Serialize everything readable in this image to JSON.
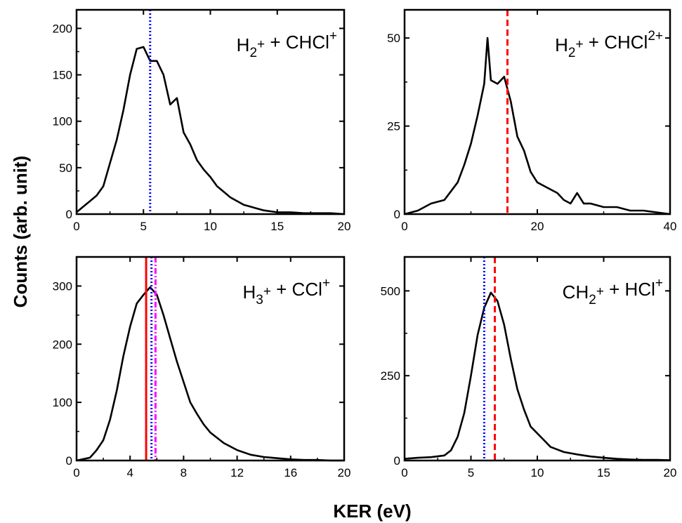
{
  "ylabel": "Counts (arb. unit)",
  "xlabel": "KER (eV)",
  "chart_data": [
    {
      "type": "line",
      "panel": "top-left",
      "title": {
        "parts": [
          {
            "t": "H"
          },
          {
            "t": "2",
            "sub": true
          },
          {
            "t": "+",
            "sup": true
          },
          {
            "t": " + CHCl"
          },
          {
            "t": "+",
            "sup": true
          }
        ]
      },
      "xlim": [
        0,
        20
      ],
      "ylim": [
        0,
        220
      ],
      "xticks": [
        0,
        5,
        10,
        15,
        20
      ],
      "yticks": [
        0,
        50,
        100,
        150,
        200
      ],
      "series": [
        {
          "color": "#000000",
          "x": [
            0,
            0.5,
            1,
            1.5,
            2,
            2.5,
            3,
            3.5,
            4,
            4.5,
            5,
            5.5,
            6,
            6.5,
            7,
            7.5,
            8,
            8.5,
            9,
            9.5,
            10,
            10.5,
            11,
            11.5,
            12,
            12.5,
            13,
            13.5,
            14,
            14.5,
            15,
            16,
            17,
            18,
            19,
            20
          ],
          "y": [
            2,
            8,
            14,
            20,
            30,
            55,
            80,
            112,
            150,
            178,
            180,
            165,
            165,
            150,
            118,
            125,
            88,
            75,
            58,
            48,
            40,
            30,
            24,
            18,
            14,
            10,
            8,
            6,
            4,
            3,
            2,
            2,
            1,
            1,
            1,
            0
          ]
        }
      ],
      "vlines": [
        {
          "x": 5.5,
          "style": "dotted",
          "color": "#0000ff"
        }
      ]
    },
    {
      "type": "line",
      "panel": "top-right",
      "title": {
        "parts": [
          {
            "t": "H"
          },
          {
            "t": "2",
            "sub": true
          },
          {
            "t": "+",
            "sup": true
          },
          {
            "t": " + CHCl"
          },
          {
            "t": "2+",
            "sup": true
          }
        ]
      },
      "xlim": [
        0,
        40
      ],
      "ylim": [
        0,
        58
      ],
      "xticks": [
        0,
        20,
        40
      ],
      "yticks": [
        0,
        25,
        50
      ],
      "series": [
        {
          "color": "#000000",
          "x": [
            0,
            2,
            4,
            6,
            8,
            9,
            10,
            11,
            12,
            12.5,
            13,
            14,
            15,
            16,
            17,
            18,
            19,
            20,
            21,
            22,
            23,
            24,
            25,
            26,
            27,
            28,
            30,
            32,
            34,
            36,
            38,
            40
          ],
          "y": [
            0,
            1,
            3,
            4,
            9,
            14,
            20,
            28,
            37,
            50,
            38,
            37,
            39,
            32,
            22,
            18,
            12,
            9,
            8,
            7,
            6,
            4,
            3,
            6,
            3,
            3,
            2,
            2,
            1,
            1,
            0.5,
            0
          ]
        }
      ],
      "vlines": [
        {
          "x": 15.5,
          "style": "dashed",
          "color": "#ff0000"
        }
      ]
    },
    {
      "type": "line",
      "panel": "bottom-left",
      "title": {
        "parts": [
          {
            "t": "H"
          },
          {
            "t": "3",
            "sub": true
          },
          {
            "t": "+",
            "sup": true
          },
          {
            "t": " + CCl"
          },
          {
            "t": "+",
            "sup": true
          }
        ]
      },
      "xlim": [
        0,
        20
      ],
      "ylim": [
        0,
        350
      ],
      "xticks": [
        0,
        4,
        8,
        12,
        16,
        20
      ],
      "yticks": [
        0,
        100,
        200,
        300
      ],
      "series": [
        {
          "color": "#000000",
          "x": [
            0,
            1,
            1.5,
            2,
            2.5,
            3,
            3.5,
            4,
            4.5,
            5,
            5.5,
            6,
            6.5,
            7,
            7.5,
            8,
            8.5,
            9,
            9.5,
            10,
            11,
            12,
            13,
            14,
            15,
            16,
            17,
            18,
            19,
            20
          ],
          "y": [
            0,
            5,
            18,
            35,
            70,
            120,
            180,
            230,
            270,
            285,
            298,
            285,
            250,
            210,
            170,
            135,
            100,
            80,
            62,
            48,
            30,
            18,
            10,
            6,
            4,
            2,
            1,
            1,
            0,
            0
          ]
        }
      ],
      "vlines": [
        {
          "x": 5.2,
          "style": "solid",
          "color": "#ff0000"
        },
        {
          "x": 5.6,
          "style": "dotted",
          "color": "#0000ff"
        },
        {
          "x": 5.9,
          "style": "dashdot",
          "color": "#ff00ff"
        }
      ]
    },
    {
      "type": "line",
      "panel": "bottom-right",
      "title": {
        "parts": [
          {
            "t": "CH"
          },
          {
            "t": "2",
            "sub": true
          },
          {
            "t": "+",
            "sup": true
          },
          {
            "t": " + HCl"
          },
          {
            "t": "+",
            "sup": true
          }
        ]
      },
      "xlim": [
        0,
        20
      ],
      "ylim": [
        0,
        600
      ],
      "xticks": [
        0,
        5,
        10,
        15,
        20
      ],
      "yticks": [
        0,
        250,
        500
      ],
      "series": [
        {
          "color": "#000000",
          "x": [
            0,
            1,
            2,
            3,
            3.5,
            4,
            4.5,
            5,
            5.5,
            6,
            6.5,
            7,
            7.5,
            8,
            8.5,
            9,
            9.5,
            10,
            10.5,
            11,
            12,
            13,
            14,
            15,
            16,
            17,
            18,
            19,
            20
          ],
          "y": [
            5,
            8,
            10,
            15,
            30,
            70,
            140,
            250,
            370,
            450,
            495,
            470,
            400,
            300,
            210,
            150,
            100,
            80,
            60,
            40,
            25,
            18,
            12,
            8,
            5,
            3,
            2,
            2,
            1
          ]
        }
      ],
      "vlines": [
        {
          "x": 6.0,
          "style": "dotted",
          "color": "#0000ff"
        },
        {
          "x": 6.8,
          "style": "dashed",
          "color": "#ff0000"
        }
      ]
    }
  ]
}
